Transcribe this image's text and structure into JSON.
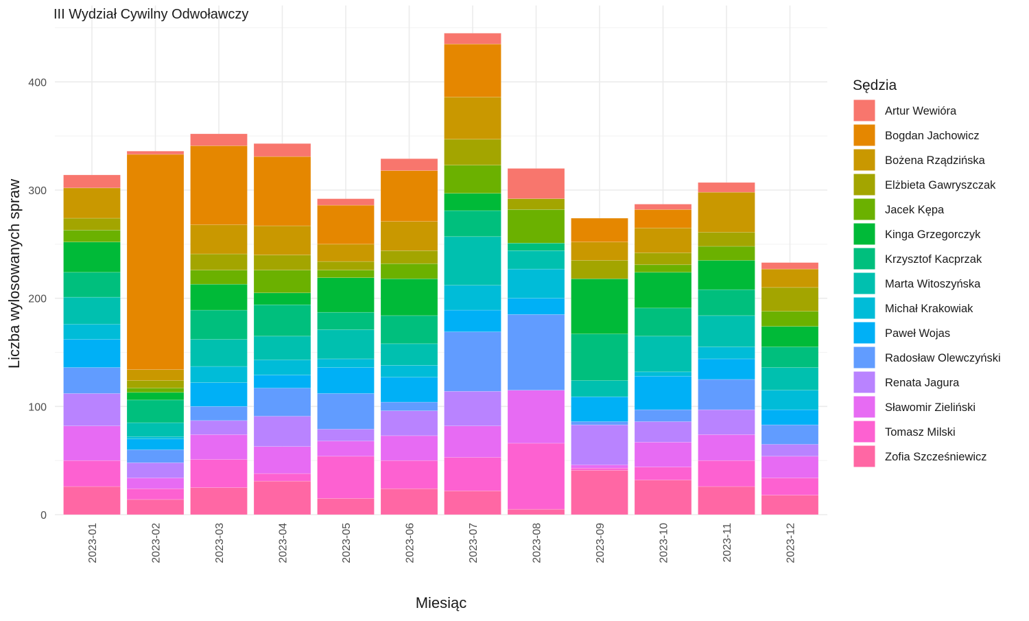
{
  "chart_data": {
    "type": "bar",
    "stacked": true,
    "title": "III Wydział Cywilny Odwoławczy",
    "xlabel": "Miesiąc",
    "ylabel": "Liczba wylosowanych spraw",
    "ylim": [
      0,
      450
    ],
    "yticks": [
      0,
      100,
      200,
      300,
      400
    ],
    "grid": true,
    "legend_title": "Sędzia",
    "legend_position": "right",
    "categories": [
      "2023-01",
      "2023-02",
      "2023-03",
      "2023-04",
      "2023-05",
      "2023-06",
      "2023-07",
      "2023-08",
      "2023-09",
      "2023-10",
      "2023-11",
      "2023-12"
    ],
    "series": [
      {
        "name": "Artur Wewióra",
        "color": "#F8766D",
        "values": [
          12,
          3,
          11,
          12,
          6,
          11,
          10,
          28,
          0,
          5,
          9,
          6
        ]
      },
      {
        "name": "Bogdan Jachowicz",
        "color": "#E58700",
        "values": [
          0,
          199,
          73,
          64,
          36,
          47,
          49,
          0,
          22,
          17,
          0,
          0
        ]
      },
      {
        "name": "Bożena Rządzińska",
        "color": "#C99800",
        "values": [
          28,
          10,
          27,
          27,
          16,
          27,
          39,
          0,
          17,
          23,
          37,
          17
        ]
      },
      {
        "name": "Elżbieta Gawryszczak",
        "color": "#A3A500",
        "values": [
          11,
          7,
          15,
          14,
          8,
          12,
          24,
          10,
          17,
          11,
          13,
          22
        ]
      },
      {
        "name": "Jacek Kępa",
        "color": "#6BB100",
        "values": [
          11,
          4,
          13,
          21,
          7,
          14,
          26,
          31,
          0,
          7,
          13,
          14
        ]
      },
      {
        "name": "Kinga Grzegorczyk",
        "color": "#00BA38",
        "values": [
          28,
          7,
          24,
          11,
          32,
          34,
          16,
          0,
          51,
          33,
          27,
          19
        ]
      },
      {
        "name": "Krzysztof Kacprzak",
        "color": "#00BF7D",
        "values": [
          23,
          21,
          27,
          29,
          16,
          26,
          24,
          7,
          43,
          26,
          24,
          19
        ]
      },
      {
        "name": "Marta Witoszyńska",
        "color": "#00C0AF",
        "values": [
          25,
          13,
          25,
          22,
          27,
          20,
          45,
          17,
          15,
          33,
          29,
          21
        ]
      },
      {
        "name": "Michał Krakowiak",
        "color": "#00BCD8",
        "values": [
          14,
          2,
          15,
          14,
          8,
          11,
          23,
          27,
          0,
          4,
          11,
          18
        ]
      },
      {
        "name": "Paweł Wojas",
        "color": "#00B0F6",
        "values": [
          26,
          10,
          22,
          12,
          24,
          23,
          20,
          15,
          23,
          31,
          19,
          14
        ]
      },
      {
        "name": "Radosław Olewczyński",
        "color": "#619CFF",
        "values": [
          24,
          12,
          13,
          26,
          33,
          8,
          55,
          70,
          3,
          11,
          28,
          18
        ]
      },
      {
        "name": "Renata Jagura",
        "color": "#B983FF",
        "values": [
          30,
          14,
          13,
          28,
          11,
          23,
          32,
          0,
          37,
          19,
          23,
          11
        ]
      },
      {
        "name": "Sławomir Zieliński",
        "color": "#E76BF3",
        "values": [
          32,
          10,
          23,
          25,
          14,
          23,
          29,
          49,
          3,
          23,
          24,
          20
        ]
      },
      {
        "name": "Tomasz Milski",
        "color": "#FD61D1",
        "values": [
          24,
          10,
          26,
          7,
          39,
          26,
          31,
          61,
          2,
          12,
          24,
          16
        ]
      },
      {
        "name": "Zofia Szcześniewicz",
        "color": "#FF67A4",
        "values": [
          26,
          14,
          25,
          31,
          15,
          24,
          22,
          5,
          41,
          32,
          26,
          18
        ]
      }
    ]
  }
}
